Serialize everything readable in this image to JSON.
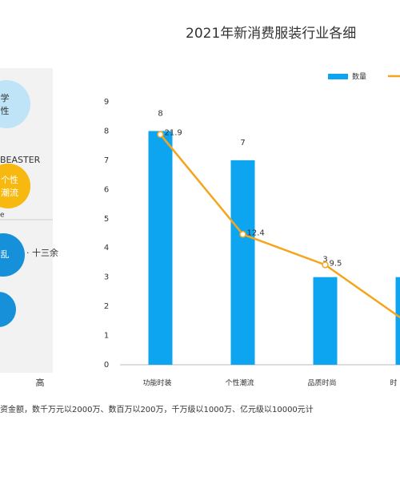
{
  "chart_data": {
    "type": "bar",
    "title": "2021年新消费服装行业各细",
    "categories": [
      "功能时装",
      "个性潮流",
      "品质时尚",
      "时"
    ],
    "series": [
      {
        "name": "数量",
        "color": "#0ea5f0",
        "values": [
          8,
          7,
          3,
          3
        ]
      },
      {
        "type": "line",
        "color": "#f5a51d",
        "axis": "y2",
        "values": [
          21.9,
          12.4,
          9.5,
          4.0
        ]
      }
    ],
    "ylim": [
      0,
      9
    ],
    "yticks": [
      0,
      1,
      2,
      3,
      4,
      5,
      6,
      7,
      8,
      9
    ],
    "y2lim": [
      0,
      25
    ],
    "grid": false,
    "legend": "top-right"
  },
  "side_panel": {
    "labels": [
      "学",
      "性",
      "BEASTER",
      "个性",
      "潮流",
      "e",
      "乱",
      "· 十三余",
      "高"
    ]
  },
  "footnote": "资金额，数千万元以2000万、数百万以200万，千万级以1000万、亿元级以10000元计"
}
